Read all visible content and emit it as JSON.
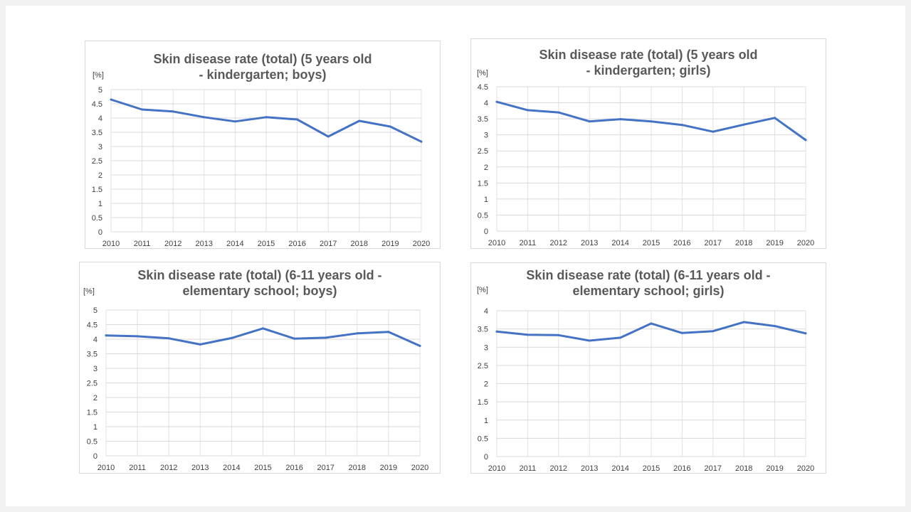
{
  "chart_data": [
    {
      "type": "line",
      "title": "Skin disease rate (total) (5 years old - kindergarten; boys)",
      "ylabel": "[%]",
      "x": [
        "2010",
        "2011",
        "2012",
        "2013",
        "2014",
        "2015",
        "2016",
        "2017",
        "2018",
        "2019",
        "2020"
      ],
      "series": [
        {
          "values": [
            4.65,
            4.3,
            4.23,
            4.03,
            3.88,
            4.03,
            3.95,
            3.35,
            3.9,
            3.7,
            3.17
          ]
        }
      ],
      "ylim": [
        0,
        5
      ],
      "yticks": [
        "0",
        "0.5",
        "1",
        "1.5",
        "2",
        "2.5",
        "3",
        "3.5",
        "4",
        "4.5",
        "5"
      ],
      "color": "#4472c4",
      "grid": true
    },
    {
      "type": "line",
      "title": "Skin disease rate (total) (5 years old - kindergarten; girls)",
      "ylabel": "[%]",
      "x": [
        "2010",
        "2011",
        "2012",
        "2013",
        "2014",
        "2015",
        "2016",
        "2017",
        "2018",
        "2019",
        "2020"
      ],
      "series": [
        {
          "values": [
            4.03,
            3.77,
            3.7,
            3.42,
            3.49,
            3.42,
            3.31,
            3.1,
            3.32,
            3.53,
            2.84
          ]
        }
      ],
      "ylim": [
        0,
        4.5
      ],
      "yticks": [
        "0",
        "0.5",
        "1",
        "1.5",
        "2",
        "2.5",
        "3",
        "3.5",
        "4",
        "4.5"
      ],
      "color": "#4472c4",
      "grid": true
    },
    {
      "type": "line",
      "title": "Skin disease rate (total) (6-11 years old - elementary school; boys)",
      "ylabel": "[%]",
      "x": [
        "2010",
        "2011",
        "2012",
        "2013",
        "2014",
        "2015",
        "2016",
        "2017",
        "2018",
        "2019",
        "2020"
      ],
      "series": [
        {
          "values": [
            4.13,
            4.1,
            4.03,
            3.82,
            4.04,
            4.37,
            4.02,
            4.05,
            4.2,
            4.25,
            3.77
          ]
        }
      ],
      "ylim": [
        0,
        5
      ],
      "yticks": [
        "0",
        "0.5",
        "1",
        "1.5",
        "2",
        "2.5",
        "3",
        "3.5",
        "4",
        "4.5",
        "5"
      ],
      "color": "#4472c4",
      "grid": true
    },
    {
      "type": "line",
      "title": "Skin disease rate (total) (6-11 years old - elementary school; girls)",
      "ylabel": "[%]",
      "x": [
        "2010",
        "2011",
        "2012",
        "2013",
        "2014",
        "2015",
        "2016",
        "2017",
        "2018",
        "2019",
        "2020"
      ],
      "series": [
        {
          "values": [
            3.43,
            3.34,
            3.33,
            3.18,
            3.26,
            3.65,
            3.39,
            3.44,
            3.69,
            3.58,
            3.38
          ]
        }
      ],
      "ylim": [
        0,
        4
      ],
      "yticks": [
        "0",
        "0.5",
        "1",
        "1.5",
        "2",
        "2.5",
        "3",
        "3.5",
        "4"
      ],
      "color": "#4472c4",
      "grid": true
    }
  ]
}
